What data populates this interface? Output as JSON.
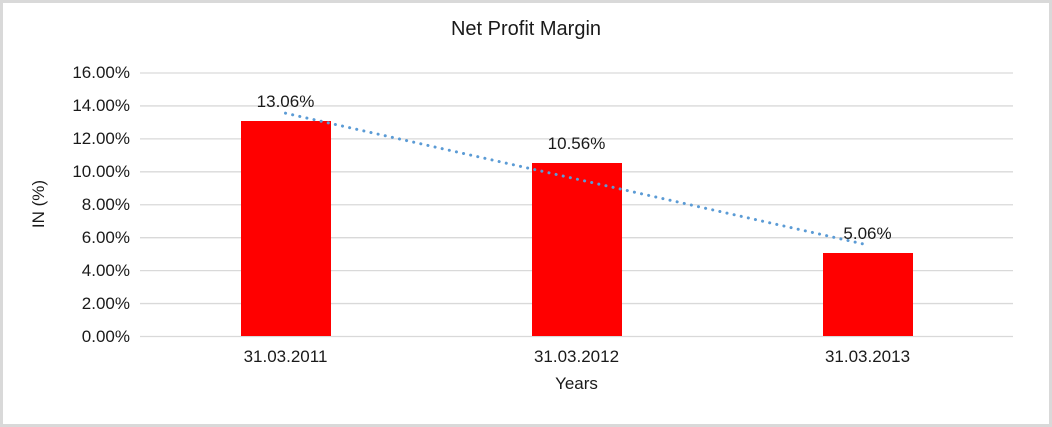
{
  "chart_data": {
    "type": "bar",
    "title": "Net Profit Margin",
    "xlabel": "Years",
    "ylabel": "IN (%)",
    "categories": [
      "31.03.2011",
      "31.03.2012",
      "31.03.2013"
    ],
    "values": [
      13.06,
      10.56,
      5.06
    ],
    "data_labels": [
      "13.06%",
      "10.56%",
      "5.06%"
    ],
    "ylim": [
      0,
      16
    ],
    "ytick_step": 2,
    "ytick_labels": [
      "0.00%",
      "2.00%",
      "4.00%",
      "6.00%",
      "8.00%",
      "10.00%",
      "12.00%",
      "14.00%",
      "16.00%"
    ],
    "grid": true,
    "legend": "none",
    "bar_color": "#FF0000",
    "trendline": {
      "type": "linear",
      "style": "dotted",
      "color": "#5B9BD5"
    },
    "colors": {
      "gridline": "#D9D9D9",
      "frame_border": "#D9D9D9",
      "background": "#FFFFFF",
      "text": "#1A1A1A"
    }
  }
}
